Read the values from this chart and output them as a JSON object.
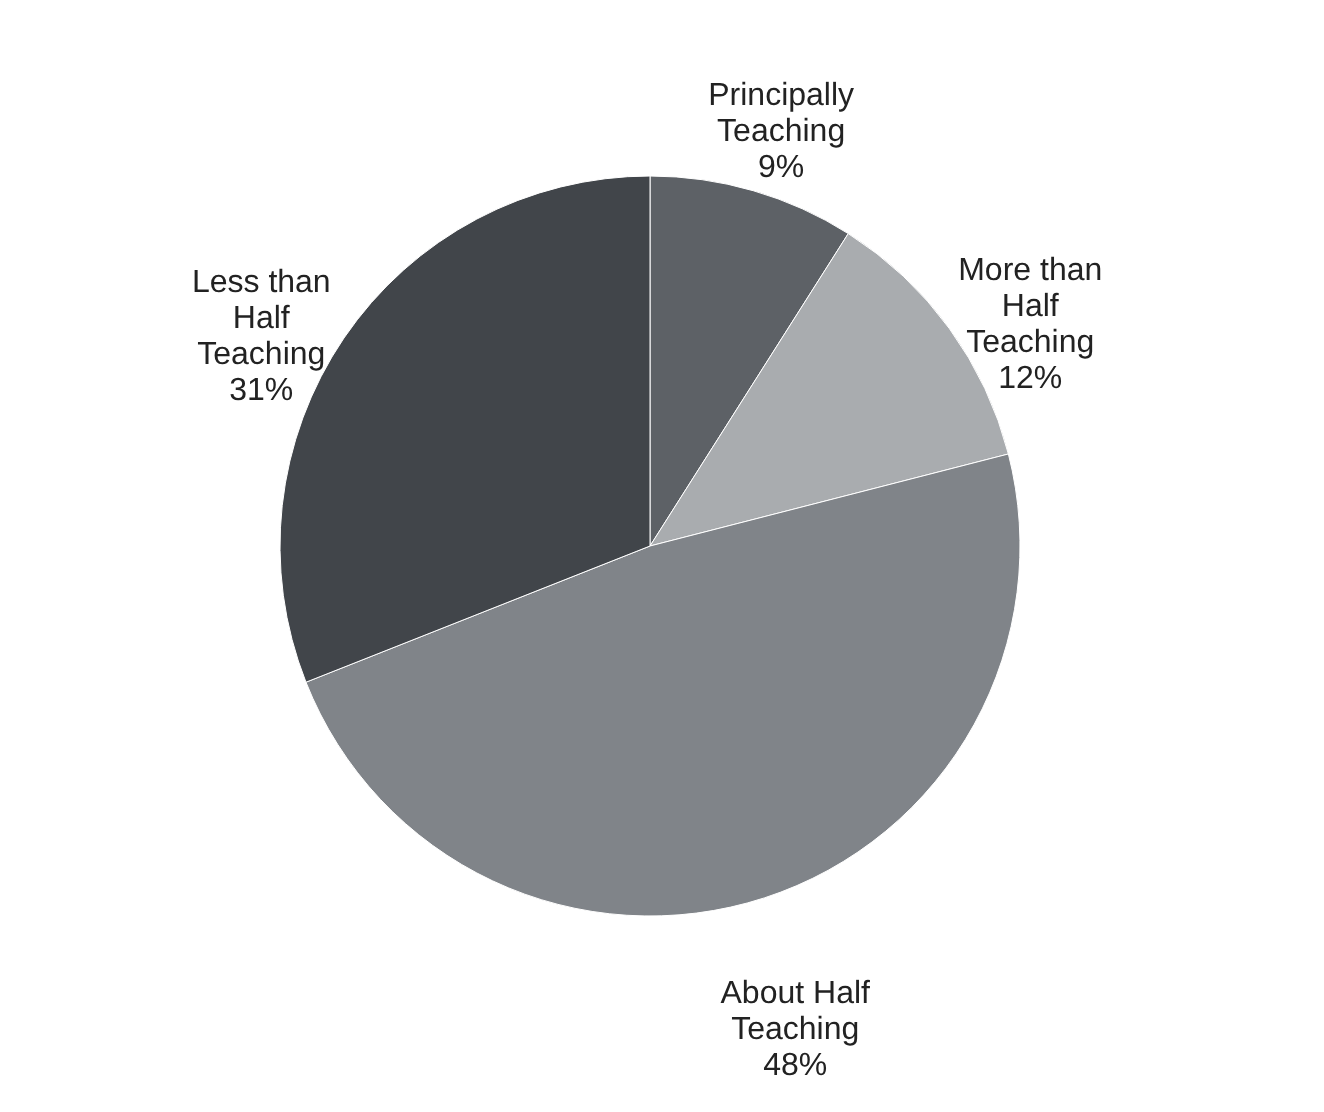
{
  "chart_data": {
    "type": "pie",
    "categories": [
      "Principally Teaching",
      "More than Half Teaching",
      "About Half Teaching",
      "Less than Half Teaching"
    ],
    "values": [
      9,
      12,
      48,
      31
    ],
    "colors": [
      "#5d6166",
      "#a9acaf",
      "#808489",
      "#41454a"
    ],
    "value_labels": [
      "9%",
      "12%",
      "48%",
      "31%"
    ],
    "legend": false
  }
}
